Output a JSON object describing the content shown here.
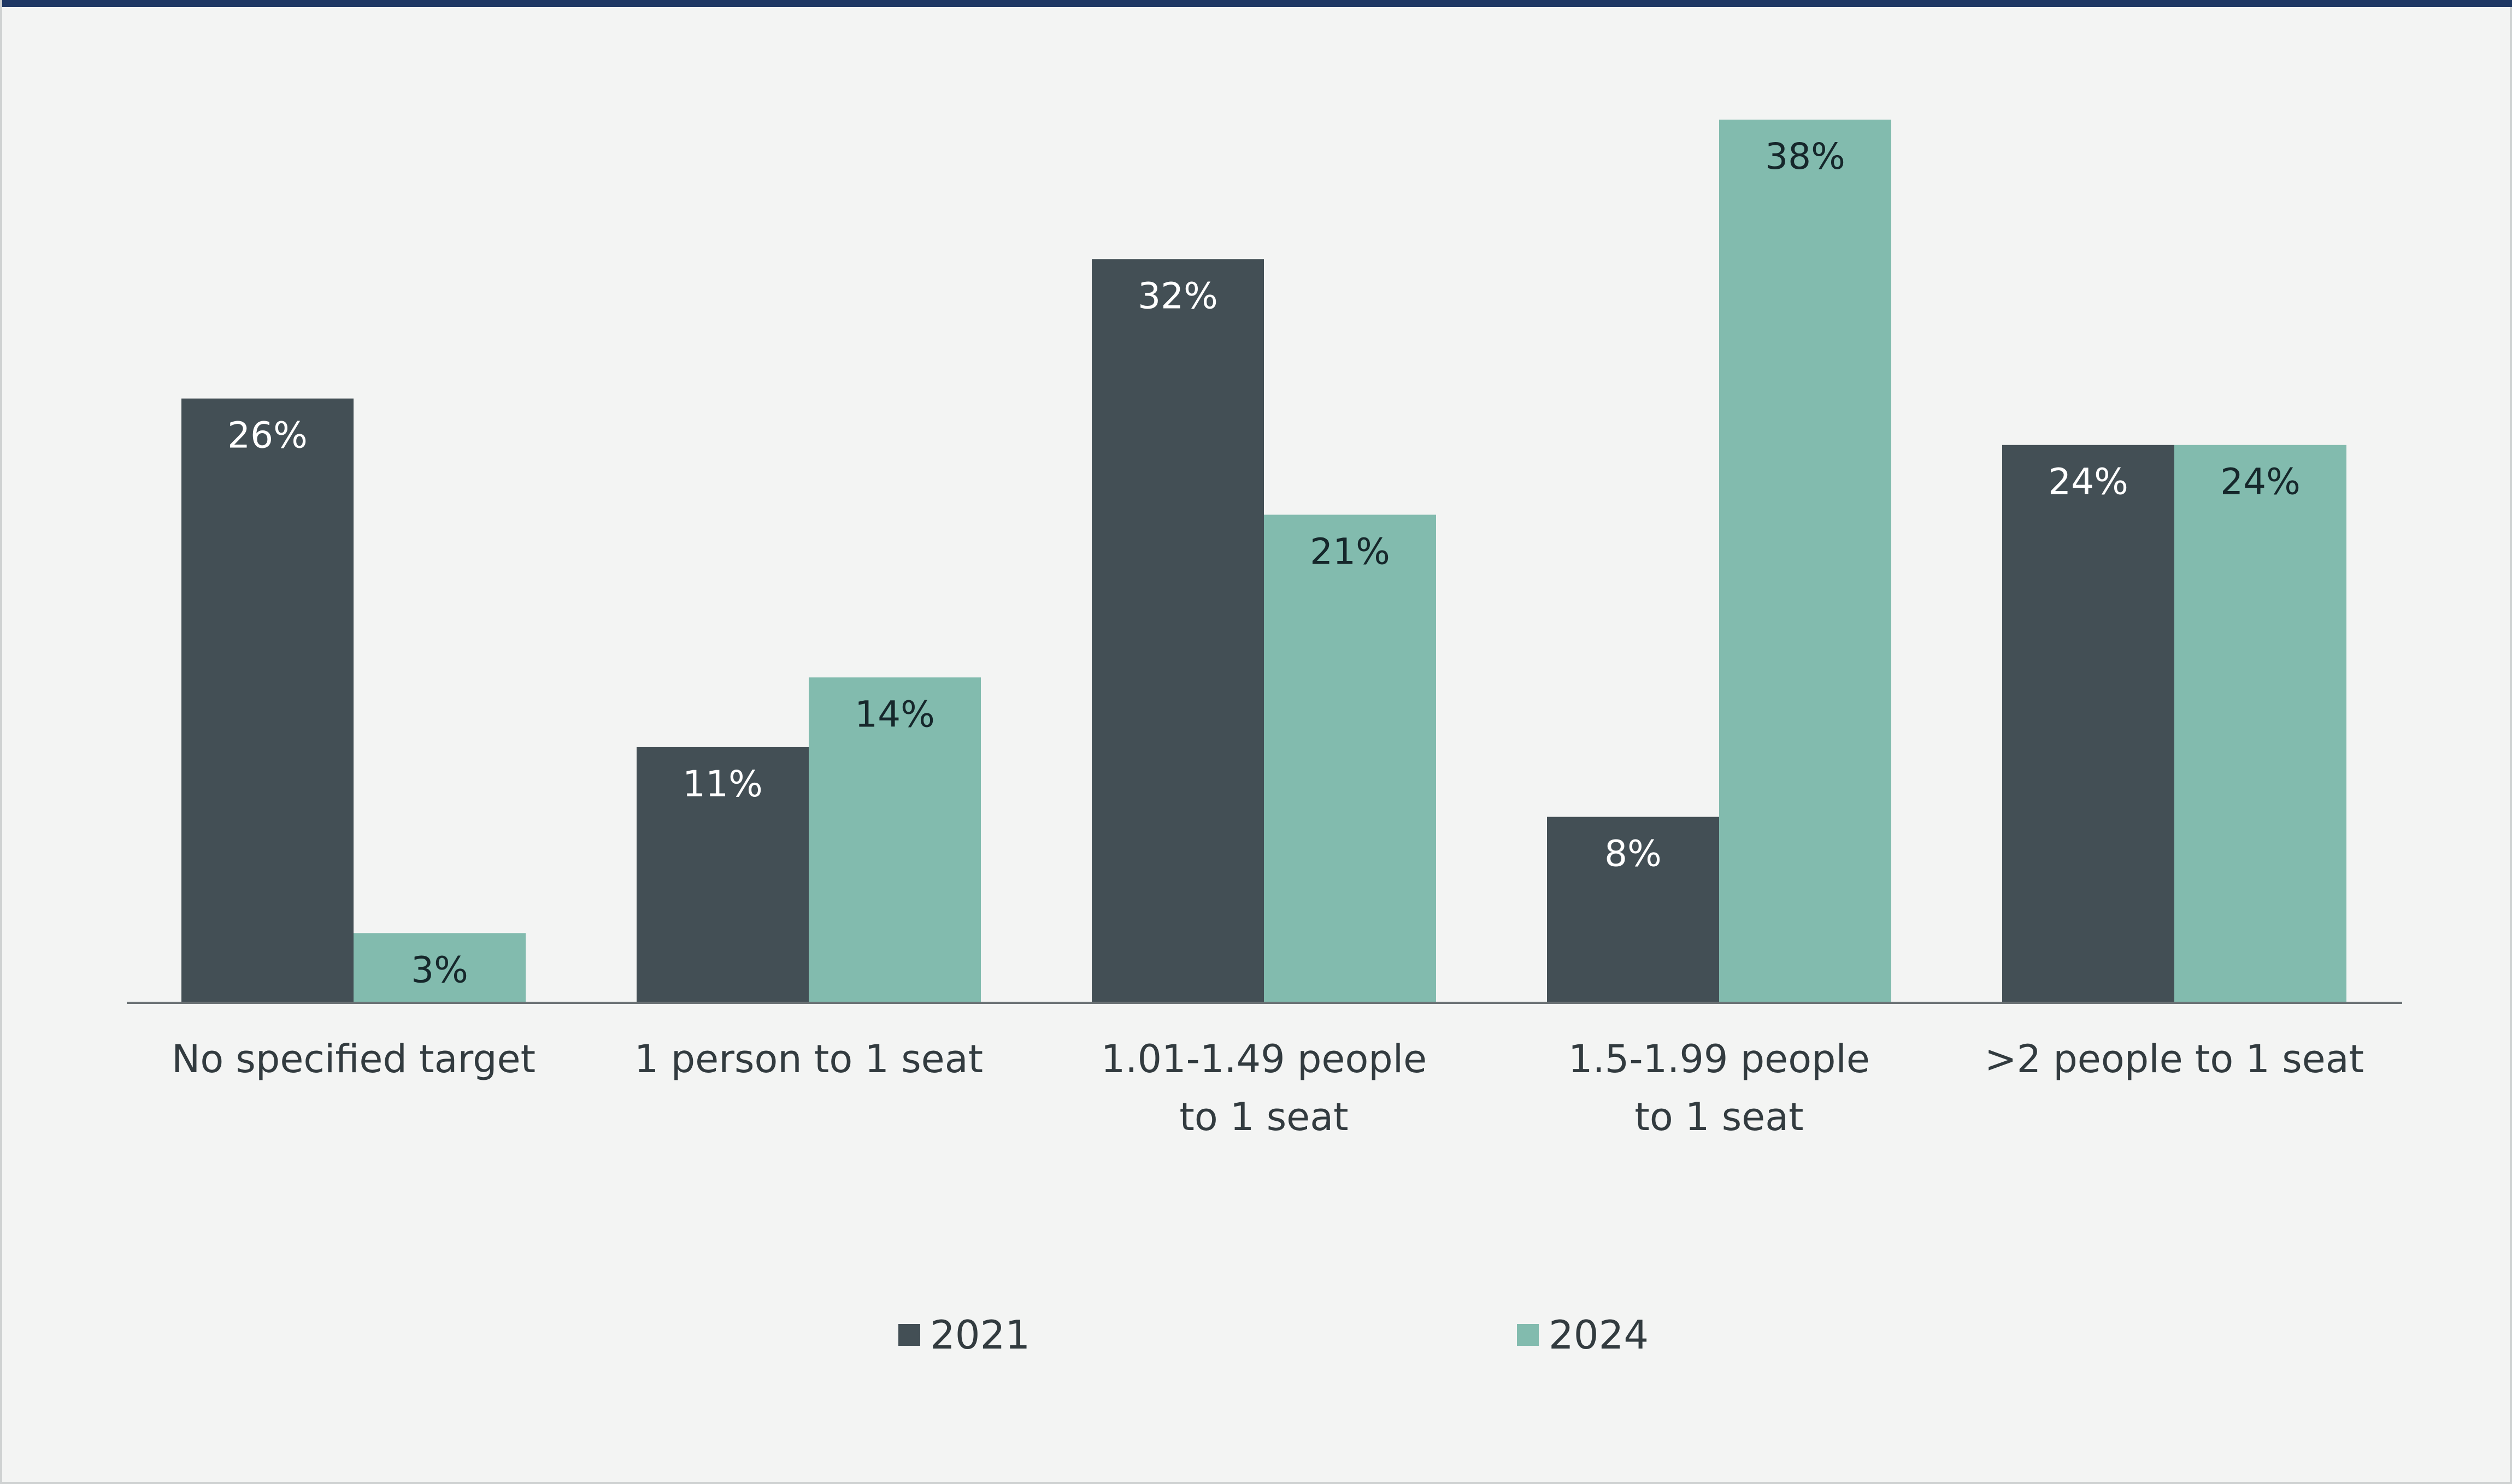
{
  "chart_data": {
    "type": "bar",
    "categories": [
      [
        "No specified target"
      ],
      [
        "1 person to 1 seat"
      ],
      [
        "1.01-1.49 people",
        "to 1 seat"
      ],
      [
        "1.5-1.99 people",
        "to 1 seat"
      ],
      [
        ">2 people to 1 seat"
      ]
    ],
    "series": [
      {
        "name": "2021",
        "values": [
          26,
          11,
          32,
          8,
          24
        ],
        "labels": [
          "26%",
          "11%",
          "32%",
          "8%",
          "24%"
        ],
        "color": "#434f55",
        "label_color": "#ffffff"
      },
      {
        "name": "2024",
        "values": [
          3,
          14,
          21,
          38,
          24
        ],
        "labels": [
          "3%",
          "14%",
          "21%",
          "38%",
          "24%"
        ],
        "color": "#82bbae",
        "label_color": "#16272b"
      }
    ],
    "ylim": [
      0,
      38
    ],
    "grid": false,
    "legend_position": "bottom-center",
    "title": "",
    "xlabel": "",
    "ylabel": ""
  },
  "legend": {
    "items": [
      {
        "label": "2021",
        "color": "#434f55"
      },
      {
        "label": "2024",
        "color": "#82bbae"
      }
    ]
  },
  "colors": {
    "background": "#f3f4f3",
    "top_rule": "#1f3864",
    "axis": "#6b7275",
    "category_text": "#323b3f"
  }
}
